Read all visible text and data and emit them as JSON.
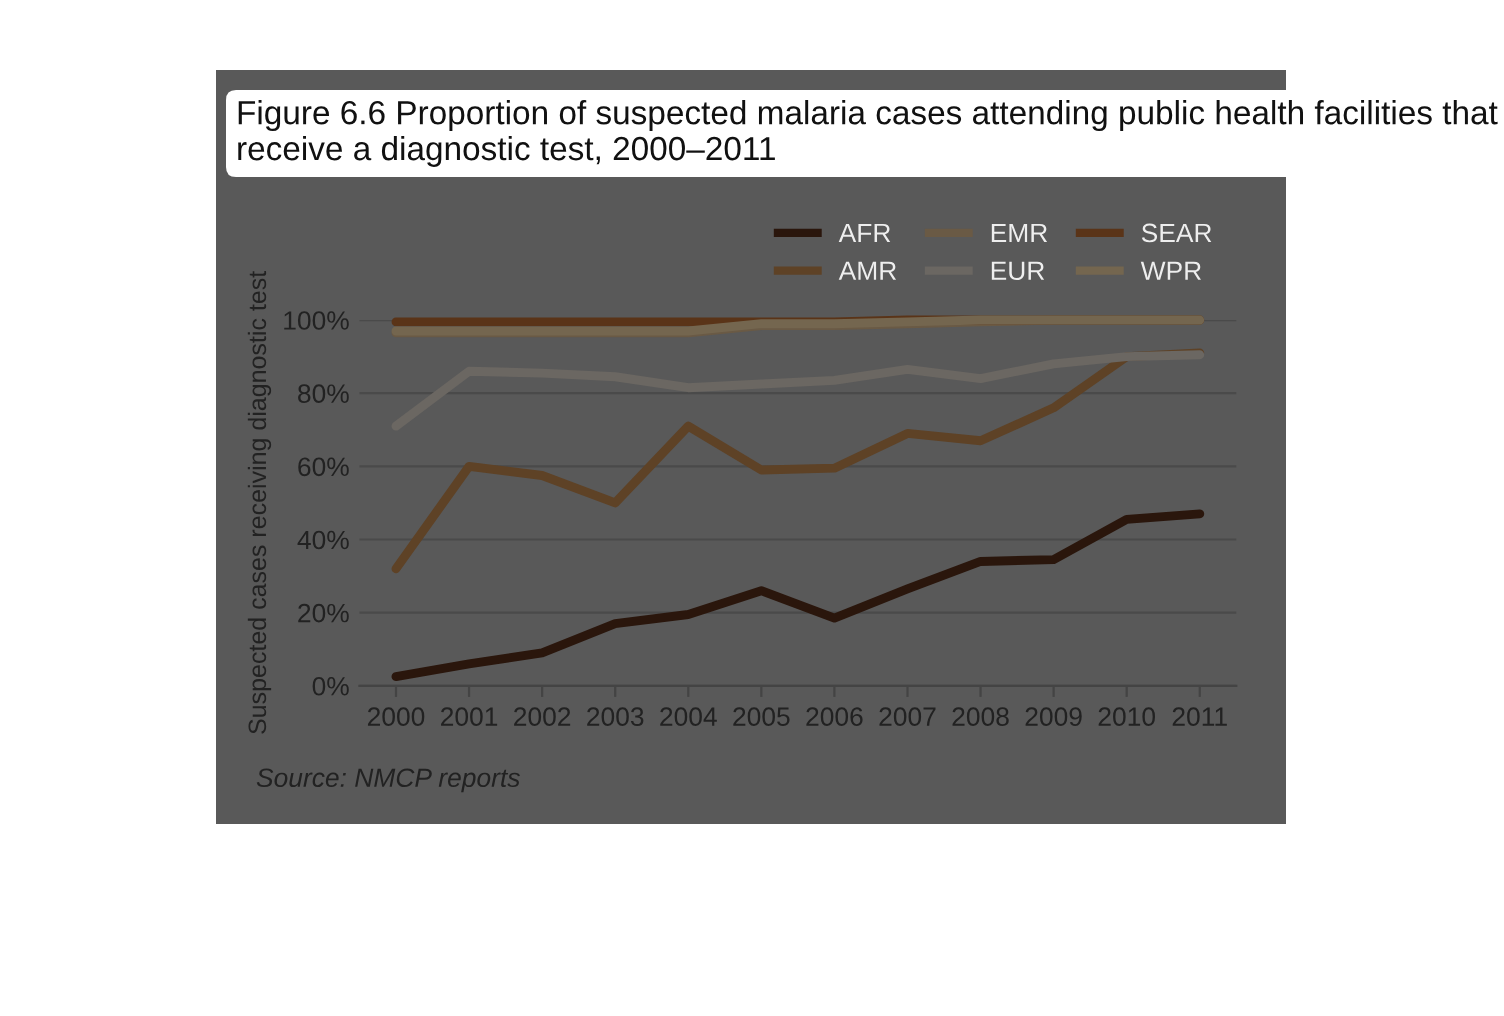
{
  "chart_data": {
    "type": "line",
    "title": "Figure 6.6 Proportion of suspected malaria cases attending public health facilities that receive a diagnostic test, 2000–2011",
    "ylabel": "Suspected cases receiving diagnostic test",
    "categories": [
      "2000",
      "2001",
      "2002",
      "2003",
      "2004",
      "2005",
      "2006",
      "2007",
      "2008",
      "2009",
      "2010",
      "2011"
    ],
    "series": [
      {
        "name": "AFR",
        "color": "#2a160c",
        "values": [
          2.5,
          6,
          9,
          17,
          19.5,
          26,
          18.5,
          26.5,
          34,
          34.5,
          45.5,
          47
        ]
      },
      {
        "name": "AMR",
        "color": "#5e4226",
        "values": [
          32,
          60,
          57.5,
          50,
          71,
          59,
          59.5,
          69,
          67,
          76,
          90,
          91
        ]
      },
      {
        "name": "EMR",
        "color": "#6a5a45",
        "values": [
          96.5,
          96.5,
          96.5,
          96.5,
          96.5,
          98.5,
          98.5,
          99,
          99.5,
          100,
          100,
          100
        ]
      },
      {
        "name": "EUR",
        "color": "#6b6762",
        "values": [
          71,
          86,
          85.5,
          84.5,
          81.5,
          82.5,
          83.5,
          86.5,
          84,
          88,
          90,
          90.5
        ]
      },
      {
        "name": "SEAR",
        "color": "#5a3418",
        "values": [
          99.5,
          99.5,
          99.5,
          99.5,
          99.5,
          99.5,
          99.5,
          100,
          100,
          100,
          100,
          100
        ]
      },
      {
        "name": "WPR",
        "color": "#74664f",
        "values": [
          97,
          97,
          97,
          97,
          97,
          99,
          99,
          99.5,
          100,
          100,
          100,
          100
        ]
      }
    ],
    "ylim": [
      0,
      100
    ],
    "yticks": [
      {
        "value": 0,
        "label": "0%"
      },
      {
        "value": 20,
        "label": "20%"
      },
      {
        "value": 40,
        "label": "40%"
      },
      {
        "value": 60,
        "label": "60%"
      },
      {
        "value": 80,
        "label": "80%"
      },
      {
        "value": 100,
        "label": "100%"
      }
    ],
    "grid": "y",
    "legend": "top right",
    "marker": "none",
    "line_style": "solid",
    "annotations": [
      "Source: NMCP reports"
    ]
  }
}
